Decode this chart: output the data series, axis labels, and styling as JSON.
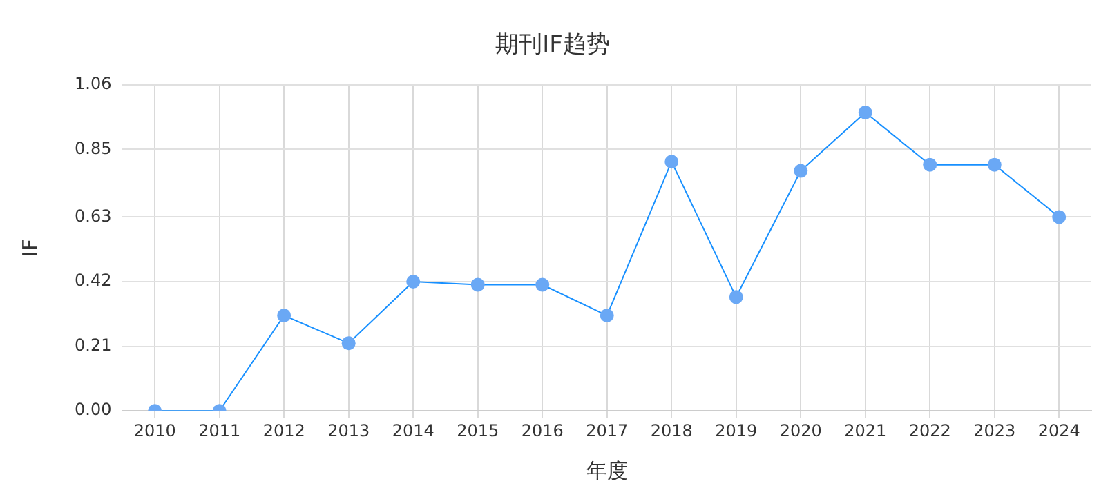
{
  "chart_data": {
    "type": "line",
    "title": "期刊IF趋势",
    "xlabel": "年度",
    "ylabel": "IF",
    "categories": [
      "2010",
      "2011",
      "2012",
      "2013",
      "2014",
      "2015",
      "2016",
      "2017",
      "2018",
      "2019",
      "2020",
      "2021",
      "2022",
      "2023",
      "2024"
    ],
    "series": [
      {
        "color": "#1890ff",
        "values": [
          0,
          0,
          0.31,
          0.22,
          0.42,
          0.41,
          0.41,
          0.31,
          0.81,
          0.37,
          0.78,
          0.97,
          0.8,
          0.8,
          0.63
        ]
      }
    ],
    "ylim": [
      0,
      1.06
    ],
    "yticks": [
      {
        "value": 0,
        "label": "0.00"
      },
      0.21,
      0.42,
      0.63,
      0.85,
      1.06
    ],
    "grid": true,
    "marker": "circle",
    "line_style": "solid"
  }
}
